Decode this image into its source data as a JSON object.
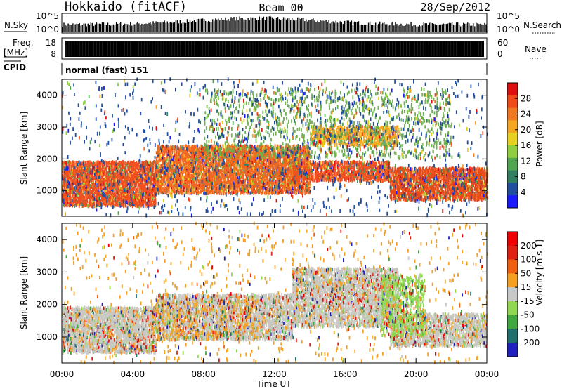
{
  "header": {
    "title": "Hokkaido (fitACF)",
    "beam": "Beam 00",
    "date": "28/Sep/2012"
  },
  "chart_data": [
    {
      "type": "line",
      "panel": "nsky-nsearch",
      "left_label": "N.Sky",
      "right_label": "N.Search",
      "yticks_left": [
        "10^5",
        "10^0"
      ],
      "yticks_right": [
        "10^5",
        "10^0"
      ]
    },
    {
      "type": "line",
      "panel": "freq-nave",
      "left_label": "Freq.",
      "left_unit": "[MHz]",
      "right_label": "Nave",
      "yticks_left": [
        "18",
        "8"
      ],
      "yticks_right": [
        "60",
        "0"
      ]
    },
    {
      "type": "table",
      "panel": "cpid",
      "label": "CPID",
      "value": "normal (fast) 151"
    },
    {
      "type": "heatmap",
      "panel": "power",
      "ylabel": "Slant Range [km]",
      "ylim": [
        200,
        4500
      ],
      "yticks": [
        1000,
        2000,
        3000,
        4000
      ],
      "colorbar_label": "Power [dB]",
      "colorbar_ticks": [
        28,
        24,
        20,
        16,
        12,
        8,
        4
      ],
      "colors": [
        "#1a1aff",
        "#1f4fa0",
        "#2f7f60",
        "#4fa64f",
        "#8fce3f",
        "#e8d020",
        "#f5a623",
        "#f07820",
        "#f04a1a",
        "#e01010"
      ],
      "blobs": [
        {
          "t0": 0,
          "t1": 5.3,
          "r0": 500,
          "r1": 1900,
          "color": "#f05020",
          "density": 0.85
        },
        {
          "t0": 5.3,
          "t1": 14,
          "r0": 900,
          "r1": 2400,
          "color": "#f06820",
          "density": 0.8
        },
        {
          "t0": 13,
          "t1": 18.5,
          "r0": 1300,
          "r1": 1900,
          "color": "#f05020",
          "density": 0.75
        },
        {
          "t0": 18.5,
          "t1": 24,
          "r0": 700,
          "r1": 1700,
          "color": "#e84a1a",
          "density": 0.8
        },
        {
          "t0": 14,
          "t1": 19,
          "r0": 2400,
          "r1": 3000,
          "color": "#f5a623",
          "density": 0.6
        },
        {
          "t0": 8,
          "t1": 22,
          "r0": 2000,
          "r1": 4200,
          "color": "#6fb14f",
          "density": 0.12
        },
        {
          "t0": 0,
          "t1": 24,
          "r0": 200,
          "r1": 4500,
          "color": "#1f4fa0",
          "density": 0.03
        }
      ]
    },
    {
      "type": "heatmap",
      "panel": "velocity",
      "xlabel": "Time UT",
      "xticks": [
        "00:00",
        "04:00",
        "08:00",
        "12:00",
        "16:00",
        "20:00",
        "00:00"
      ],
      "ylabel": "Slant Range [km]",
      "ylim": [
        200,
        4500
      ],
      "yticks": [
        1000,
        2000,
        3000,
        4000
      ],
      "colorbar_label": "Velocity [m s-1]",
      "colorbar_ticks": [
        200,
        100,
        50,
        15,
        -15,
        -50,
        -100,
        -200
      ],
      "colors": [
        "#2020c0",
        "#1f6f6f",
        "#3fa83f",
        "#8fd84f",
        "#c8c8c8",
        "#f5a020",
        "#f06010",
        "#e02010",
        "#f00000"
      ],
      "blobs": [
        {
          "t0": 0,
          "t1": 5.3,
          "r0": 500,
          "r1": 1900,
          "color": "#c8c8c0",
          "density": 0.8
        },
        {
          "t0": 5.3,
          "t1": 13,
          "r0": 900,
          "r1": 2300,
          "color": "#c8c8c0",
          "density": 0.7
        },
        {
          "t0": 13,
          "t1": 19,
          "r0": 1300,
          "r1": 3100,
          "color": "#c8c8c0",
          "density": 0.7
        },
        {
          "t0": 18.5,
          "t1": 24,
          "r0": 700,
          "r1": 1700,
          "color": "#c8c8c0",
          "density": 0.7
        },
        {
          "t0": 18,
          "t1": 20.5,
          "r0": 1000,
          "r1": 2900,
          "color": "#8fd84f",
          "density": 0.35
        },
        {
          "t0": 5,
          "t1": 11,
          "r0": 900,
          "r1": 2100,
          "color": "#f5a020",
          "density": 0.15
        },
        {
          "t0": 0,
          "t1": 24,
          "r0": 200,
          "r1": 4500,
          "color": "#f5a020",
          "density": 0.03
        }
      ]
    }
  ]
}
